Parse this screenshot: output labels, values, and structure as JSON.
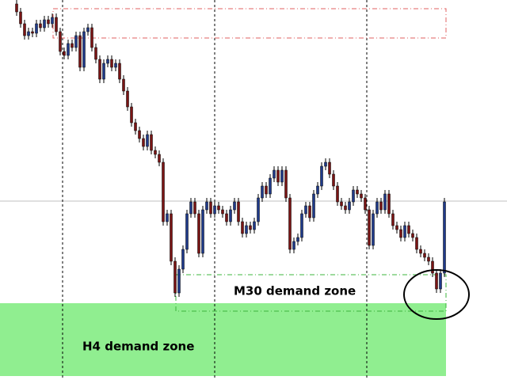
{
  "chart_data": {
    "type": "candlestick",
    "annotations": [
      "M30 demand zone",
      "H4 demand zone"
    ],
    "up_color": "#1f3a8a",
    "down_color": "#7a1414",
    "ylim": [
      0,
      480
    ],
    "open": [
      475,
      465,
      450,
      435,
      440,
      438,
      450,
      445,
      455,
      450,
      458,
      440,
      415,
      410,
      425,
      420,
      435,
      395,
      440,
      445,
      420,
      405,
      380,
      400,
      405,
      395,
      400,
      380,
      365,
      345,
      325,
      315,
      305,
      295,
      310,
      290,
      285,
      275,
      200,
      210,
      150,
      110,
      140,
      165,
      210,
      225,
      210,
      160,
      215,
      225,
      210,
      220,
      215,
      210,
      200,
      215,
      225,
      200,
      185,
      195,
      190,
      200,
      230,
      245,
      235,
      255,
      265,
      250,
      265,
      230,
      165,
      175,
      180,
      210,
      220,
      205,
      235,
      245,
      270,
      275,
      260,
      245,
      225,
      220,
      215,
      225,
      240,
      235,
      230,
      215,
      170,
      210,
      225,
      215,
      235,
      210,
      195,
      190,
      180,
      195,
      185,
      180,
      165,
      160,
      155,
      150,
      135,
      115,
      135
    ],
    "high": [
      480,
      470,
      455,
      445,
      445,
      455,
      455,
      460,
      460,
      463,
      463,
      445,
      420,
      430,
      430,
      440,
      440,
      445,
      450,
      450,
      425,
      410,
      405,
      410,
      410,
      405,
      405,
      385,
      370,
      350,
      330,
      320,
      310,
      315,
      315,
      295,
      290,
      280,
      215,
      215,
      155,
      145,
      170,
      215,
      230,
      230,
      215,
      220,
      230,
      230,
      225,
      225,
      220,
      215,
      220,
      230,
      230,
      205,
      200,
      200,
      205,
      235,
      250,
      250,
      260,
      270,
      270,
      270,
      270,
      235,
      180,
      185,
      215,
      225,
      225,
      240,
      250,
      275,
      280,
      280,
      265,
      250,
      230,
      225,
      230,
      245,
      245,
      240,
      235,
      220,
      215,
      230,
      230,
      240,
      240,
      215,
      200,
      195,
      200,
      200,
      190,
      185,
      170,
      165,
      160,
      155,
      140,
      140,
      230
    ],
    "low": [
      460,
      445,
      430,
      430,
      433,
      433,
      440,
      440,
      445,
      445,
      435,
      410,
      405,
      405,
      415,
      415,
      390,
      390,
      435,
      415,
      400,
      375,
      375,
      395,
      390,
      390,
      375,
      360,
      340,
      320,
      310,
      300,
      290,
      290,
      285,
      280,
      270,
      195,
      195,
      145,
      105,
      105,
      135,
      160,
      205,
      205,
      155,
      155,
      210,
      205,
      205,
      210,
      205,
      195,
      195,
      210,
      195,
      180,
      180,
      185,
      185,
      195,
      225,
      230,
      230,
      250,
      245,
      245,
      225,
      160,
      160,
      170,
      175,
      205,
      200,
      200,
      230,
      240,
      265,
      255,
      240,
      220,
      215,
      210,
      210,
      220,
      230,
      225,
      210,
      165,
      165,
      205,
      210,
      210,
      205,
      190,
      185,
      175,
      175,
      180,
      175,
      160,
      155,
      150,
      145,
      130,
      110,
      110,
      130
    ],
    "close": [
      465,
      450,
      435,
      440,
      438,
      450,
      445,
      455,
      450,
      458,
      440,
      415,
      410,
      425,
      420,
      435,
      395,
      440,
      445,
      420,
      405,
      380,
      400,
      405,
      395,
      400,
      380,
      365,
      345,
      325,
      315,
      305,
      295,
      310,
      290,
      285,
      275,
      200,
      210,
      150,
      110,
      140,
      165,
      210,
      225,
      210,
      160,
      215,
      225,
      210,
      220,
      215,
      210,
      200,
      215,
      225,
      200,
      185,
      195,
      190,
      200,
      230,
      245,
      235,
      255,
      265,
      250,
      265,
      230,
      165,
      175,
      180,
      210,
      220,
      205,
      235,
      245,
      270,
      275,
      260,
      245,
      225,
      220,
      215,
      225,
      240,
      235,
      230,
      215,
      170,
      210,
      225,
      215,
      235,
      210,
      195,
      190,
      180,
      195,
      185,
      180,
      165,
      160,
      155,
      150,
      135,
      115,
      135,
      225
    ]
  }
}
